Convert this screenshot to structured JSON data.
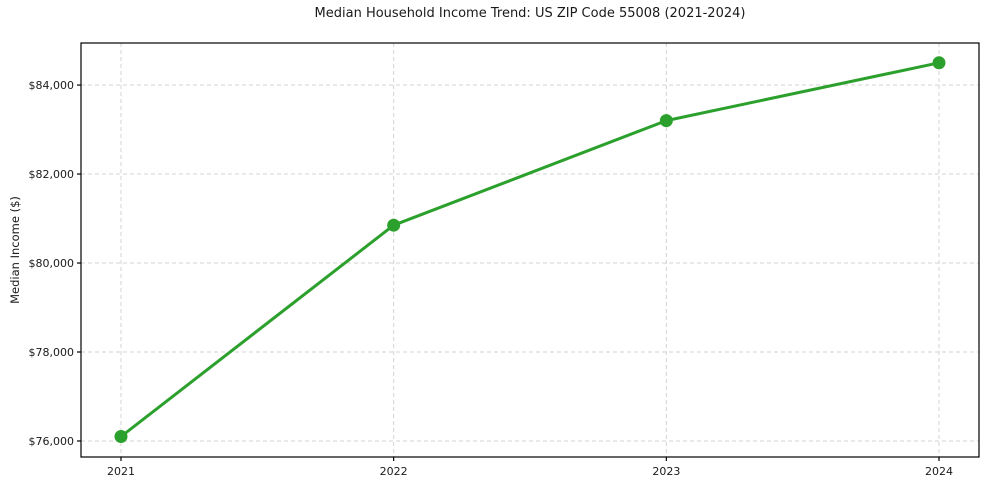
{
  "title": "Median Household Income Trend: US ZIP Code 55008 (2021-2024)",
  "colors": {
    "line": "#2ca02c",
    "grid": "#d3d3d3",
    "spine": "#000000",
    "text": "#1a1a1a",
    "background": "#ffffff"
  },
  "chart_data": {
    "type": "line",
    "title": "Median Household Income Trend: US ZIP Code 55008 (2021-2024)",
    "xlabel": "",
    "ylabel": "Median Income ($)",
    "x": [
      2021,
      2022,
      2023,
      2024
    ],
    "xtick_labels": [
      "2021",
      "2022",
      "2023",
      "2024"
    ],
    "series": [
      {
        "name": "Median Household Income",
        "values": [
          76100,
          80850,
          83200,
          84500
        ]
      }
    ],
    "yticks": [
      76000,
      78000,
      80000,
      82000,
      84000
    ],
    "ytick_labels": [
      "$76,000",
      "$78,000",
      "$80,000",
      "$82,000",
      "$84,000"
    ],
    "ylim": [
      75640,
      84945
    ],
    "grid": true,
    "grid_style": "dashed",
    "legend": "none",
    "marker": "circle",
    "line_color": "#2ca02c"
  }
}
